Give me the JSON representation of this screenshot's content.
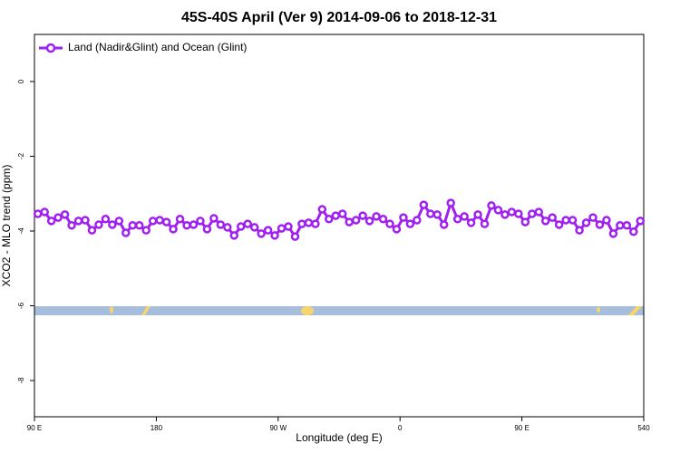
{
  "chart_data": {
    "type": "line",
    "title": "45S-40S April (Ver 9)   2014-09-06 to 2018-12-31",
    "xlabel": "Longitude (deg E)",
    "ylabel": "XCO2 - MLO trend (ppm)",
    "xlim": [
      90,
      540
    ],
    "xticks": [
      {
        "value": 90,
        "label": "90 E"
      },
      180,
      {
        "value": 270,
        "label": "90 W"
      },
      {
        "value": 360,
        "label": "0"
      },
      {
        "value": 450,
        "label": "90 E"
      },
      540
    ],
    "ylim": [
      -8.97,
      1.26
    ],
    "yticks": [
      0,
      -2,
      -4,
      -6,
      -8
    ],
    "legend": "top-left",
    "x": [
      92.5,
      97.5,
      102.5,
      107.5,
      112.5,
      117.5,
      122.5,
      127.5,
      132.5,
      137.5,
      142.5,
      147.5,
      152.5,
      157.5,
      162.5,
      167.5,
      172.5,
      177.5,
      182.5,
      187.5,
      192.5,
      197.5,
      202.5,
      207.5,
      212.5,
      217.5,
      222.5,
      227.5,
      232.5,
      237.5,
      242.5,
      247.5,
      252.5,
      257.5,
      262.5,
      267.5,
      272.5,
      277.5,
      282.5,
      287.5,
      292.5,
      297.5,
      302.5,
      307.5,
      312.5,
      317.5,
      322.5,
      327.5,
      332.5,
      337.5,
      342.5,
      347.5,
      352.5,
      357.5,
      362.5,
      367.5,
      372.5,
      377.5,
      382.5,
      387.5,
      392.5,
      397.5,
      402.5,
      407.5,
      412.5,
      417.5,
      422.5,
      427.5,
      432.5,
      437.5,
      442.5,
      447.5,
      452.5,
      457.5,
      462.5,
      467.5,
      472.5,
      477.5,
      482.5,
      487.5,
      492.5,
      497.5,
      502.5,
      507.5,
      512.5,
      517.5,
      522.5,
      527.5,
      532.5,
      537.5
    ],
    "series": [
      {
        "name": "Land (Nadir&Glint) and Ocean (Glint)",
        "color": "#a020f0",
        "values": [
          -3.54,
          -3.49,
          -3.73,
          -3.64,
          -3.56,
          -3.85,
          -3.73,
          -3.71,
          -3.98,
          -3.83,
          -3.68,
          -3.83,
          -3.73,
          -4.05,
          -3.85,
          -3.85,
          -3.98,
          -3.73,
          -3.71,
          -3.76,
          -3.95,
          -3.68,
          -3.85,
          -3.83,
          -3.73,
          -3.95,
          -3.66,
          -3.83,
          -3.9,
          -4.12,
          -3.88,
          -3.81,
          -3.9,
          -4.07,
          -3.98,
          -4.12,
          -3.93,
          -3.88,
          -4.15,
          -3.81,
          -3.78,
          -3.81,
          -3.42,
          -3.68,
          -3.59,
          -3.54,
          -3.76,
          -3.71,
          -3.59,
          -3.73,
          -3.61,
          -3.68,
          -3.81,
          -3.95,
          -3.64,
          -3.81,
          -3.71,
          -3.3,
          -3.54,
          -3.56,
          -3.83,
          -3.25,
          -3.68,
          -3.61,
          -3.78,
          -3.56,
          -3.81,
          -3.32,
          -3.44,
          -3.56,
          -3.49,
          -3.54,
          -3.76,
          -3.54,
          -3.49,
          -3.73,
          -3.64,
          -3.83,
          -3.71,
          -3.71,
          -3.98,
          -3.78,
          -3.64,
          -3.83,
          -3.71,
          -4.07,
          -3.85,
          -3.85,
          -4.02,
          -3.73
        ]
      }
    ]
  }
}
